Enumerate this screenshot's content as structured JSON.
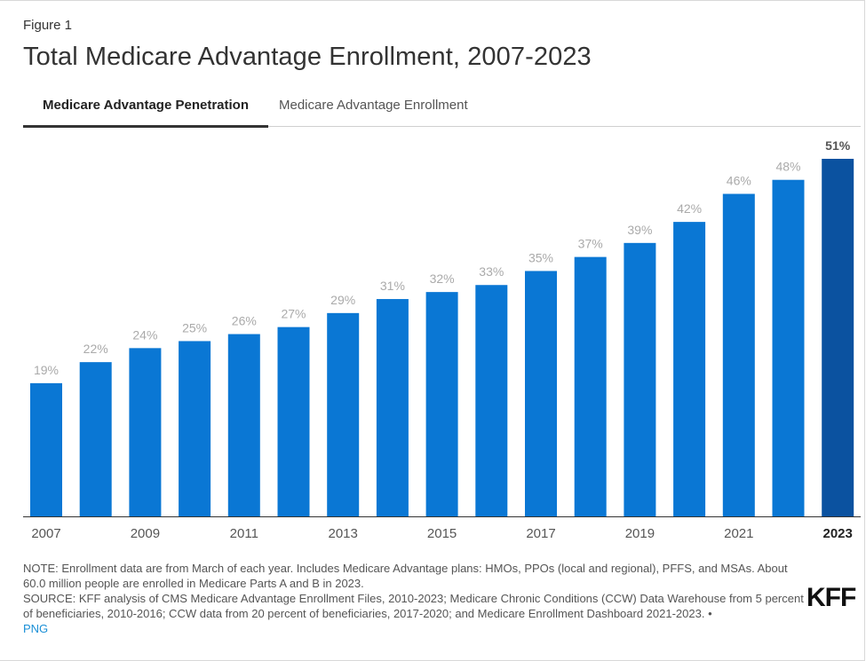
{
  "header": {
    "figure_label": "Figure 1",
    "title": "Total Medicare Advantage Enrollment, 2007-2023"
  },
  "tabs": [
    {
      "label": "Medicare Advantage Penetration",
      "active": true
    },
    {
      "label": "Medicare Advantage Enrollment",
      "active": false
    }
  ],
  "colors": {
    "bar": "#0a77d4",
    "bar_highlight": "#0b52a0",
    "data_label": "#aaaaaa",
    "data_label_highlight": "#555555",
    "axis_text": "#555555",
    "baseline": "#333333"
  },
  "chart_data": {
    "type": "bar",
    "categories": [
      "2007",
      "2008",
      "2009",
      "2010",
      "2011",
      "2012",
      "2013",
      "2014",
      "2015",
      "2016",
      "2017",
      "2018",
      "2019",
      "2020",
      "2021",
      "2022",
      "2023"
    ],
    "values": [
      19,
      22,
      24,
      25,
      26,
      27,
      29,
      31,
      32,
      33,
      35,
      37,
      39,
      42,
      46,
      48,
      51
    ],
    "data_labels": [
      "19%",
      "22%",
      "24%",
      "25%",
      "26%",
      "27%",
      "29%",
      "31%",
      "32%",
      "33%",
      "35%",
      "37%",
      "39%",
      "42%",
      "46%",
      "48%",
      "51%"
    ],
    "x_tick_labels": [
      "2007",
      "",
      "2009",
      "",
      "2011",
      "",
      "2013",
      "",
      "2015",
      "",
      "2017",
      "",
      "2019",
      "",
      "2021",
      "",
      "2023"
    ],
    "highlight_category": "2023",
    "ylim": [
      0,
      51
    ],
    "grid": false
  },
  "footer": {
    "note": "NOTE: Enrollment data are from March of each year. Includes Medicare Advantage plans: HMOs, PPOs (local and regional), PFFS, and MSAs. About 60.0 million people are enrolled in Medicare Parts A and B in 2023.",
    "source": "SOURCE: KFF analysis of CMS Medicare Advantage Enrollment Files, 2010-2023; Medicare Chronic Conditions (CCW) Data Warehouse from 5 percent of beneficiaries, 2010-2016; CCW data from 20 percent of beneficiaries, 2017-2020; and Medicare Enrollment Dashboard 2021-2023. •",
    "png_link": "PNG",
    "logo": "KFF"
  }
}
